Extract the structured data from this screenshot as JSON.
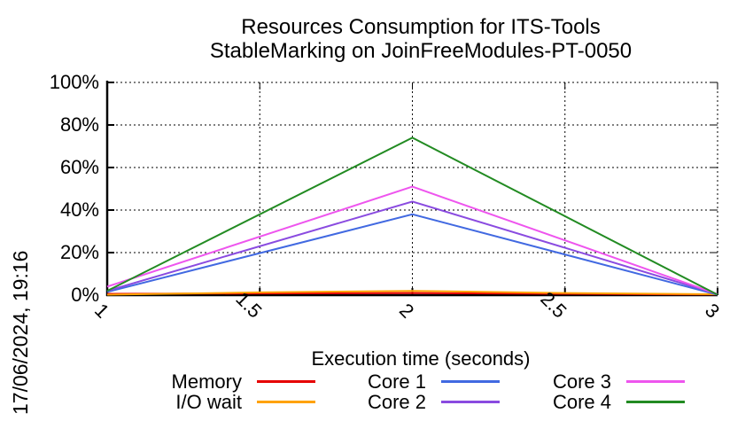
{
  "title": {
    "line1": "Resources Consumption for ITS-Tools",
    "line2": "StableMarking on JoinFreeModules-PT-0050"
  },
  "timestamp": "17/06/2024, 19:16",
  "axes": {
    "xlabel": "Execution time (seconds)",
    "x_tick_labels": [
      "1",
      "1.5",
      "2",
      "2.5",
      "3"
    ],
    "y_tick_labels": [
      "0%",
      "20%",
      "40%",
      "60%",
      "80%",
      "100%"
    ]
  },
  "colors": {
    "axis": "#000000",
    "grid": "#000000",
    "background": "#ffffff"
  },
  "legend": [
    {
      "label": "Memory",
      "color": "#e60000"
    },
    {
      "label": "I/O wait",
      "color": "#ffa200"
    },
    {
      "label": "Core 1",
      "color": "#4169e1"
    },
    {
      "label": "Core 2",
      "color": "#8a4be0"
    },
    {
      "label": "Core 3",
      "color": "#ee55ee"
    },
    {
      "label": "Core 4",
      "color": "#228b22"
    }
  ],
  "chart_data": {
    "type": "line",
    "title": "Resources Consumption for ITS-Tools — StableMarking on JoinFreeModules-PT-0050",
    "xlabel": "Execution time (seconds)",
    "ylabel": "",
    "xlim": [
      1,
      3
    ],
    "ylim": [
      0,
      100
    ],
    "x_ticks": [
      1,
      1.5,
      2,
      2.5,
      3
    ],
    "y_ticks": [
      0,
      20,
      40,
      60,
      80,
      100
    ],
    "grid": true,
    "legend_position": "bottom",
    "series": [
      {
        "name": "Memory",
        "color": "#e60000",
        "points": [
          [
            1,
            0.6
          ],
          [
            1.5,
            0.8
          ],
          [
            2,
            1.0
          ],
          [
            2.5,
            0.6
          ],
          [
            3,
            0.3
          ]
        ]
      },
      {
        "name": "I/O wait",
        "color": "#ffa200",
        "points": [
          [
            1,
            0.2
          ],
          [
            1.5,
            1.3
          ],
          [
            2,
            2.0
          ],
          [
            2.5,
            1.0
          ],
          [
            3,
            0.4
          ]
        ]
      },
      {
        "name": "Core 1",
        "color": "#4169e1",
        "points": [
          [
            1,
            1.5
          ],
          [
            2,
            38.0
          ],
          [
            3,
            0.2
          ]
        ]
      },
      {
        "name": "Core 2",
        "color": "#8a4be0",
        "points": [
          [
            1,
            2.0
          ],
          [
            2,
            44.0
          ],
          [
            3,
            0.5
          ]
        ]
      },
      {
        "name": "Core 3",
        "color": "#ee55ee",
        "points": [
          [
            1,
            4.0
          ],
          [
            2,
            51.0
          ],
          [
            3,
            0.5
          ]
        ]
      },
      {
        "name": "Core 4",
        "color": "#228b22",
        "points": [
          [
            1,
            2.0
          ],
          [
            2,
            74.0
          ],
          [
            3,
            0.2
          ]
        ]
      }
    ]
  }
}
